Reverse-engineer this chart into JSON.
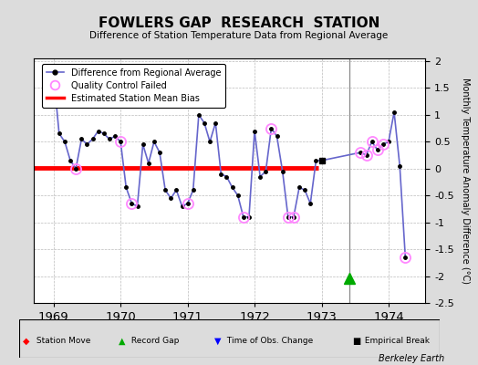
{
  "title": "FOWLERS GAP  RESEARCH  STATION",
  "subtitle": "Difference of Station Temperature Data from Regional Average",
  "ylabel": "Monthly Temperature Anomaly Difference (°C)",
  "xlim": [
    1968.7,
    1974.55
  ],
  "ylim": [
    -2.5,
    2.05
  ],
  "yticks": [
    -2.5,
    -2.0,
    -1.5,
    -1.0,
    -0.5,
    0.0,
    0.5,
    1.0,
    1.5,
    2.0
  ],
  "xticks": [
    1969,
    1970,
    1971,
    1972,
    1973,
    1974
  ],
  "mean_bias": 0.02,
  "bias_xstart": 1968.7,
  "bias_xend": 1972.95,
  "vertical_line_x": 1973.42,
  "record_gap_x": 1973.42,
  "record_gap_y": -2.05,
  "main_line_color": "#6666cc",
  "main_marker_color": "#000000",
  "qc_fail_color": "#ff88ff",
  "bias_color": "#ff0000",
  "background_color": "#dcdcdc",
  "plot_bg_color": "#ffffff",
  "data_x": [
    1969.0,
    1969.083,
    1969.167,
    1969.25,
    1969.333,
    1969.417,
    1969.5,
    1969.583,
    1969.667,
    1969.75,
    1969.833,
    1969.917,
    1970.0,
    1970.083,
    1970.167,
    1970.25,
    1970.333,
    1970.417,
    1970.5,
    1970.583,
    1970.667,
    1970.75,
    1970.833,
    1970.917,
    1971.0,
    1971.083,
    1971.167,
    1971.25,
    1971.333,
    1971.417,
    1971.5,
    1971.583,
    1971.667,
    1971.75,
    1971.833,
    1971.917,
    1972.0,
    1972.083,
    1972.167,
    1972.25,
    1972.333,
    1972.417,
    1972.5,
    1972.583,
    1972.667,
    1972.75,
    1972.833,
    1972.917,
    1973.0,
    1973.583,
    1973.667,
    1973.75,
    1973.833,
    1973.917,
    1974.0,
    1974.083,
    1974.167,
    1974.25
  ],
  "data_y": [
    1.75,
    0.65,
    0.5,
    0.15,
    0.0,
    0.55,
    0.45,
    0.55,
    0.7,
    0.65,
    0.55,
    0.6,
    0.5,
    -0.35,
    -0.65,
    -0.7,
    0.45,
    0.1,
    0.5,
    0.3,
    -0.4,
    -0.55,
    -0.4,
    -0.7,
    -0.65,
    -0.4,
    1.0,
    0.85,
    0.5,
    0.85,
    -0.1,
    -0.15,
    -0.35,
    -0.5,
    -0.9,
    -0.9,
    0.7,
    -0.15,
    -0.05,
    0.75,
    0.6,
    -0.05,
    -0.9,
    -0.9,
    -0.35,
    -0.4,
    -0.65,
    0.15,
    0.15,
    0.3,
    0.25,
    0.5,
    0.35,
    0.45,
    0.5,
    1.05,
    0.05,
    -1.65
  ],
  "qc_fail_indices": [
    4,
    12,
    14,
    24,
    34,
    39,
    42,
    43,
    49,
    50,
    51,
    52,
    53,
    57
  ],
  "break_indices": [
    48
  ],
  "footer": "Berkeley Earth"
}
